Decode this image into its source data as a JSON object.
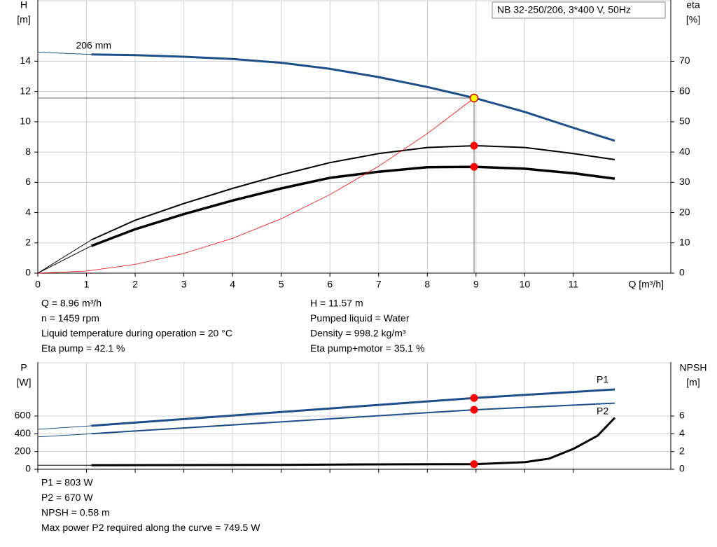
{
  "chart_data": [
    {
      "type": "line",
      "title": "NB 32-250/206, 3*400 V, 50Hz",
      "x_label": "Q [m³/h]",
      "y_label": "H",
      "y_unit": "[m]",
      "y2_label": "eta",
      "y2_unit": "[%]",
      "xlim": [
        0,
        13
      ],
      "xticks": [
        0,
        1,
        2,
        3,
        4,
        5,
        6,
        7,
        8,
        9,
        10,
        11
      ],
      "ylim": [
        0,
        18
      ],
      "yticks": [
        0,
        2,
        4,
        6,
        8,
        10,
        12,
        14
      ],
      "y2lim": [
        0,
        90
      ],
      "y2ticks": [
        0,
        10,
        20,
        30,
        40,
        50,
        60,
        70
      ],
      "grid": true,
      "series": [
        {
          "name": "206 mm",
          "color": "#1b4f8a",
          "width": 3,
          "lead_in": true,
          "x": [
            0,
            1.1,
            2,
            3,
            4,
            5,
            6,
            7,
            8,
            9,
            10,
            11,
            11.85
          ],
          "values": [
            14.6,
            14.45,
            14.4,
            14.3,
            14.15,
            13.9,
            13.5,
            12.95,
            12.3,
            11.55,
            10.65,
            9.6,
            8.75
          ],
          "marker": {
            "x": 8.96,
            "value": 11.57,
            "color": "#ffff00",
            "edge": "#e00000"
          }
        },
        {
          "color": "#000000",
          "width": 2,
          "lead_in": true,
          "axis": "y2",
          "x": [
            0,
            1.1,
            2,
            3,
            4,
            5,
            6,
            7,
            8,
            9,
            10,
            11,
            11.85
          ],
          "values": [
            0,
            11,
            17.5,
            23,
            28,
            32.5,
            36.5,
            39.5,
            41.5,
            42.1,
            41.5,
            39.5,
            37.5
          ],
          "marker": {
            "x": 8.96,
            "value": 42.1,
            "color": "#ff0000"
          }
        },
        {
          "color": "#000000",
          "width": 3.5,
          "lead_in": true,
          "axis": "y2",
          "x": [
            0,
            1.1,
            2,
            3,
            4,
            5,
            6,
            7,
            8,
            9,
            10,
            11,
            11.85
          ],
          "values": [
            0,
            9,
            14.5,
            19.5,
            24,
            28,
            31.5,
            33.5,
            35,
            35.1,
            34.5,
            33,
            31.2
          ],
          "marker": {
            "x": 8.96,
            "value": 35.1,
            "color": "#ff0000"
          }
        },
        {
          "color": "#ff0000",
          "width": 0.8,
          "lead_in": false,
          "x": [
            0,
            1,
            2,
            3,
            4,
            5,
            6,
            7,
            8,
            8.96
          ],
          "values": [
            0,
            0.14,
            0.58,
            1.3,
            2.3,
            3.6,
            5.19,
            7.06,
            9.22,
            11.57
          ]
        }
      ],
      "readout_left": [
        "Q = 8.96 m³/h",
        "n = 1459 rpm",
        "Liquid temperature during operation = 20 °C",
        "Eta pump = 42.1 %"
      ],
      "readout_right": [
        "H = 11.57 m",
        "Pumped liquid = Water",
        "Density = 998.2 kg/m³",
        "Eta pump+motor = 35.1 %"
      ]
    },
    {
      "type": "line",
      "y_label": "P",
      "y_unit": "[W]",
      "y2_label": "NPSH",
      "y2_unit": "[m]",
      "xlim": [
        0,
        13
      ],
      "ylim": [
        0,
        1200
      ],
      "yticks": [
        0,
        200,
        400,
        600
      ],
      "y2lim": [
        0,
        12
      ],
      "y2ticks": [
        0,
        2,
        4,
        6
      ],
      "grid": true,
      "series": [
        {
          "name": "P1",
          "color": "#1b4f8a",
          "width": 3,
          "lead_in": true,
          "x": [
            0,
            1.1,
            8.96,
            11.85
          ],
          "values": [
            450,
            490,
            803,
            900
          ],
          "marker": {
            "x": 8.96,
            "value": 803,
            "color": "#ff0000"
          }
        },
        {
          "name": "P2",
          "color": "#1b4f8a",
          "width": 2,
          "lead_in": true,
          "x": [
            0,
            1.1,
            8.96,
            11.85
          ],
          "values": [
            365,
            400,
            670,
            745
          ],
          "marker": {
            "x": 8.96,
            "value": 670,
            "color": "#ff0000"
          }
        },
        {
          "color": "#000000",
          "width": 3,
          "lead_in": true,
          "axis": "y2",
          "x": [
            0,
            1.1,
            3,
            5,
            7,
            8.96,
            10,
            10.5,
            11,
            11.5,
            11.85
          ],
          "values": [
            0.45,
            0.45,
            0.47,
            0.5,
            0.55,
            0.58,
            0.8,
            1.2,
            2.3,
            3.8,
            5.8
          ],
          "marker": {
            "x": 8.96,
            "value": 0.58,
            "color": "#ff0000"
          }
        }
      ],
      "readout_left": [
        "P1 = 803 W",
        "P2 = 670 W",
        "NPSH = 0.58 m",
        "Max power P2 required along the curve = 749.5 W"
      ]
    }
  ]
}
